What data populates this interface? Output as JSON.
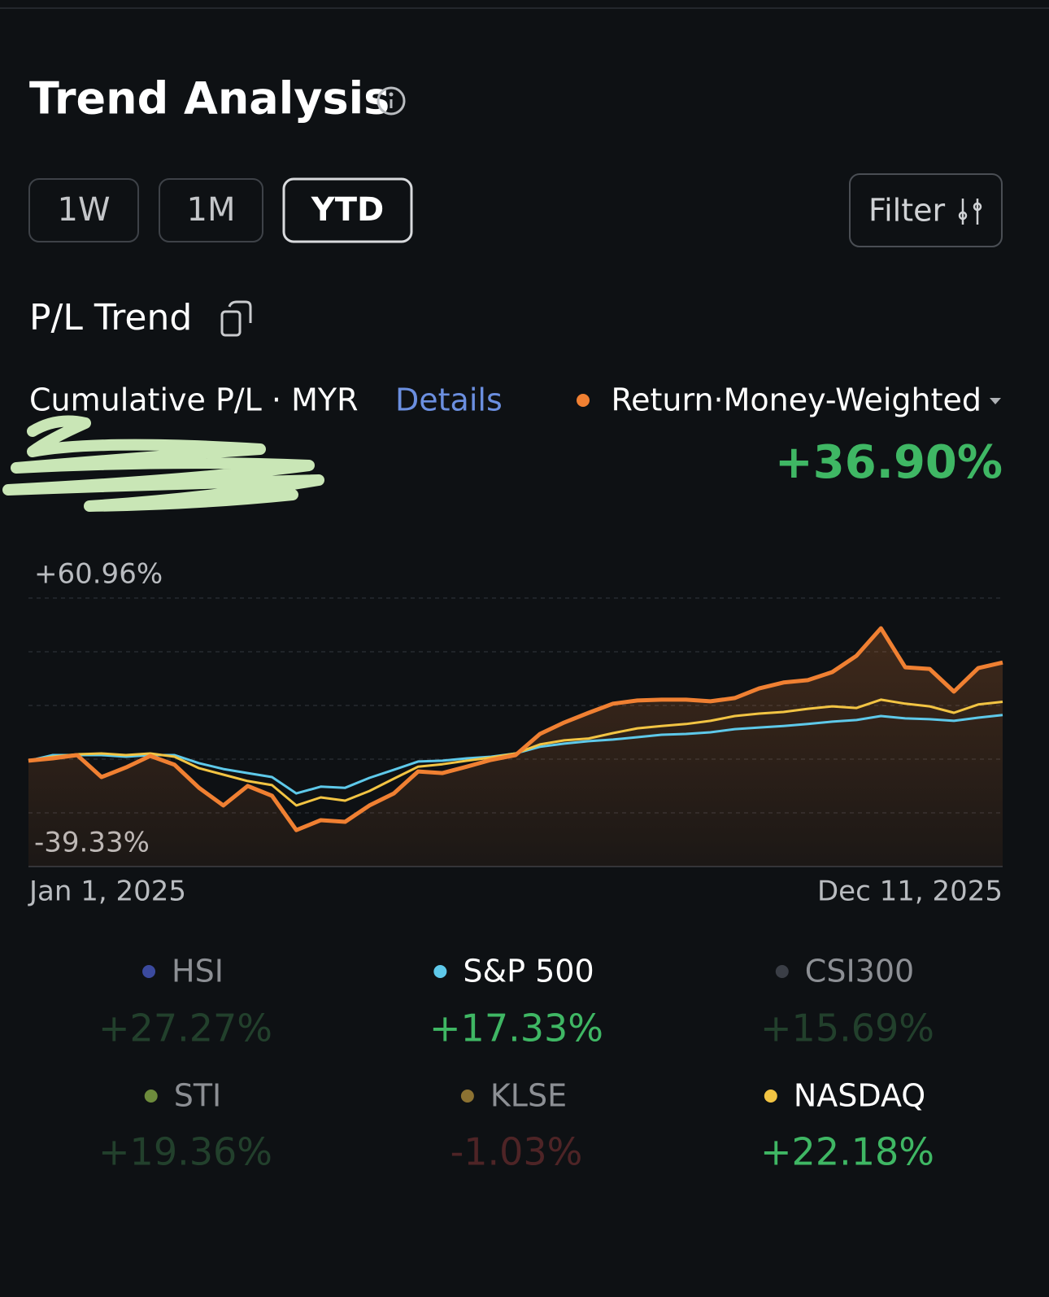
{
  "header": {
    "title": "Trend Analysis"
  },
  "tabs": {
    "items": [
      "1W",
      "1M",
      "YTD"
    ],
    "active": 2,
    "filter": "Filter"
  },
  "section_title": "P/L Trend",
  "summary": {
    "label": "Cumulative P/L · MYR",
    "link": "Details"
  },
  "chart_data": {
    "type": "line",
    "ylim": [
      -39.33,
      60.96
    ],
    "yticks": [
      {
        "value": 60.96,
        "label": "+60.96%"
      },
      {
        "value": -39.33,
        "label": "-39.33%"
      }
    ],
    "grid": true,
    "categories": [
      "Jan 1, 2025",
      null,
      null,
      null,
      null,
      null,
      null,
      null,
      null,
      null,
      null,
      null,
      null,
      null,
      null,
      null,
      null,
      null,
      null,
      null,
      null,
      null,
      null,
      null,
      null,
      null,
      null,
      null,
      null,
      null,
      null,
      null,
      null,
      null,
      null,
      null,
      null,
      null,
      null,
      null,
      "Dec 11, 2025"
    ],
    "series": [
      {
        "name": "Return·Money-Weighted",
        "color": "#f08032",
        "total": 36.9,
        "total_label": "+36.90%",
        "values": [
          0.2,
          1.1,
          2.3,
          -5.9,
          -2.3,
          2.0,
          -1.3,
          -9.9,
          -16.5,
          -9.2,
          -12.9,
          -25.7,
          -22.0,
          -22.6,
          -16.5,
          -12.0,
          -3.8,
          -4.4,
          -2.0,
          0.5,
          2.3,
          10.2,
          14.5,
          18.1,
          21.5,
          22.7,
          23.0,
          23.0,
          22.4,
          23.6,
          27.2,
          29.4,
          30.3,
          33.3,
          39.4,
          49.7,
          35.1,
          34.5,
          26.0,
          34.8,
          36.9
        ]
      }
    ],
    "benchmarks": [
      {
        "name": "HSI",
        "color": "#3b4a9e",
        "return": 27.27,
        "return_label": "+27.27%",
        "active": false
      },
      {
        "name": "S&P 500",
        "color": "#5ec9ea",
        "return": 17.33,
        "return_label": "+17.33%",
        "active": true,
        "values": [
          0.2,
          2.3,
          2.3,
          2.3,
          1.7,
          2.3,
          2.3,
          -0.7,
          -2.9,
          -4.4,
          -5.9,
          -12.0,
          -9.5,
          -9.9,
          -6.2,
          -3.2,
          -0.1,
          0.2,
          1.1,
          1.7,
          2.9,
          5.4,
          6.6,
          7.5,
          8.1,
          9.0,
          9.9,
          10.2,
          10.8,
          12.0,
          12.6,
          13.2,
          13.9,
          14.8,
          15.4,
          16.9,
          16.0,
          15.7,
          15.1,
          16.3,
          17.3
        ]
      },
      {
        "name": "CSI300",
        "color": "#3a3e46",
        "return": 15.69,
        "return_label": "+15.69%",
        "active": false
      },
      {
        "name": "STI",
        "color": "#6d8b3c",
        "return": 19.36,
        "return_label": "+19.36%",
        "active": false
      },
      {
        "name": "KLSE",
        "color": "#8c7232",
        "return": -1.03,
        "return_label": "-1.03%",
        "active": false
      },
      {
        "name": "NASDAQ",
        "color": "#f2c443",
        "return": 22.18,
        "return_label": "+22.18%",
        "active": true,
        "values": [
          0.2,
          1.7,
          2.6,
          2.9,
          2.3,
          2.9,
          1.7,
          -2.6,
          -5.0,
          -7.4,
          -8.9,
          -16.5,
          -13.5,
          -14.7,
          -11.1,
          -6.5,
          -2.0,
          -1.1,
          0.2,
          1.4,
          2.9,
          6.3,
          7.8,
          8.5,
          10.5,
          12.3,
          13.2,
          13.9,
          15.1,
          16.9,
          17.8,
          18.4,
          19.6,
          20.5,
          19.9,
          23.0,
          21.5,
          20.5,
          18.1,
          21.2,
          22.2
        ]
      }
    ]
  }
}
